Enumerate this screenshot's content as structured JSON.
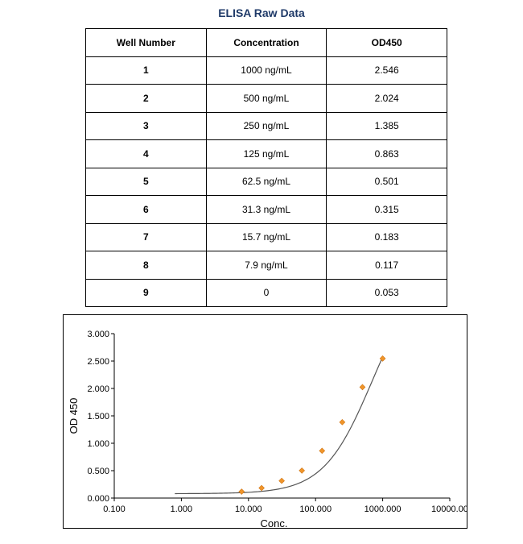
{
  "page": {
    "title": "ELISA Raw Data"
  },
  "table": {
    "headers": [
      "Well Number",
      "Concentration",
      "OD450"
    ],
    "rows": [
      [
        "1",
        "1000 ng/mL",
        "2.546"
      ],
      [
        "2",
        "500 ng/mL",
        "2.024"
      ],
      [
        "3",
        "250 ng/mL",
        "1.385"
      ],
      [
        "4",
        "125 ng/mL",
        "0.863"
      ],
      [
        "5",
        "62.5 ng/mL",
        "0.501"
      ],
      [
        "6",
        "31.3 ng/mL",
        "0.315"
      ],
      [
        "7",
        "15.7 ng/mL",
        "0.183"
      ],
      [
        "8",
        "7.9 ng/mL",
        "0.117"
      ],
      [
        "9",
        "0",
        "0.053"
      ]
    ]
  },
  "chart_data": {
    "type": "scatter",
    "xlabel": "Conc.",
    "ylabel": "OD 450",
    "xscale": "log",
    "xlim": [
      0.1,
      10000
    ],
    "ylim": [
      0,
      3
    ],
    "x_ticks": [
      "0.100",
      "1.000",
      "10.000",
      "100.000",
      "1000.000",
      "10000.00"
    ],
    "y_ticks": [
      "0.000",
      "0.500",
      "1.000",
      "1.500",
      "2.000",
      "2.500",
      "3.000"
    ],
    "grid": false,
    "points": {
      "x": [
        7.9,
        15.7,
        31.3,
        62.5,
        125,
        250,
        500,
        1000
      ],
      "y": [
        0.117,
        0.183,
        0.315,
        0.501,
        0.863,
        1.385,
        2.024,
        2.546
      ]
    },
    "fit_curve": {
      "x_range": [
        0.8,
        1000
      ],
      "model": "4PL",
      "params": {
        "a": 0.08,
        "d": 4.2,
        "c": 700,
        "b": 1.2
      }
    },
    "colors": {
      "points": "#f0952a",
      "curve": "#555555"
    }
  }
}
